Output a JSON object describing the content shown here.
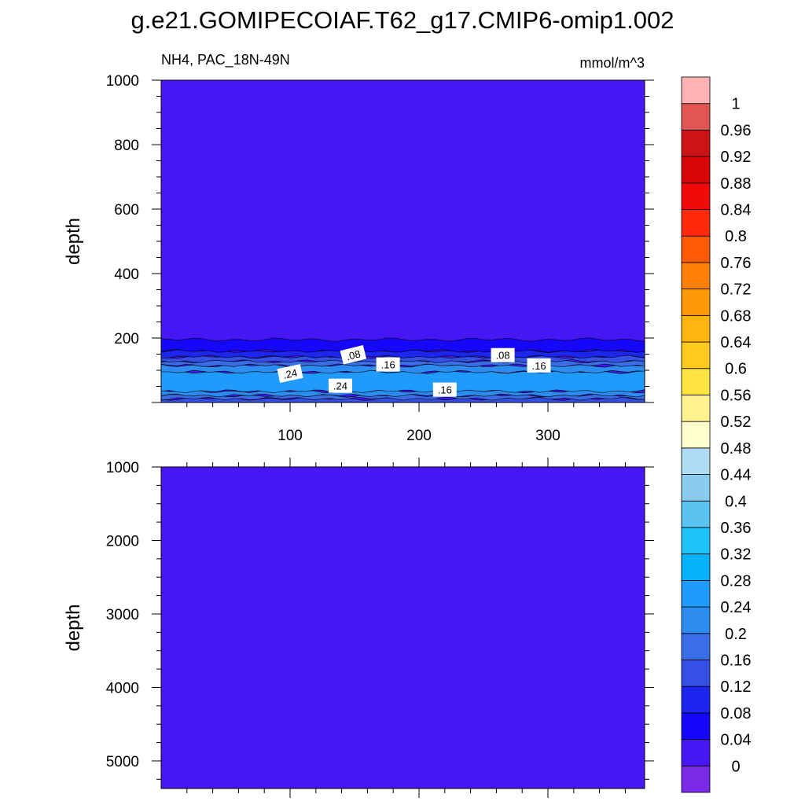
{
  "page": {
    "title": "g.e21.GOMIPECOIAF.T62_g17.CMIP6-omip1.002",
    "left_label": "NH4, PAC_18N-49N",
    "units": "mmol/m^3"
  },
  "chart_data": [
    {
      "type": "heatmap",
      "panel": "upper",
      "xlim": [
        0,
        375
      ],
      "ylim": [
        1000,
        0
      ],
      "ylabel": "depth",
      "xticks": [
        100,
        200,
        300
      ],
      "yticks": [
        200,
        400,
        600,
        800,
        1000
      ],
      "background_value": 0.02,
      "layers": [
        {
          "from": 0,
          "to": 12,
          "value": 0.14
        },
        {
          "from": 12,
          "to": 22,
          "value": 0.18
        },
        {
          "from": 22,
          "to": 35,
          "value": 0.22
        },
        {
          "from": 35,
          "to": 95,
          "value": 0.26
        },
        {
          "from": 95,
          "to": 115,
          "value": 0.22
        },
        {
          "from": 115,
          "to": 128,
          "value": 0.18
        },
        {
          "from": 128,
          "to": 142,
          "value": 0.14
        },
        {
          "from": 142,
          "to": 160,
          "value": 0.1
        },
        {
          "from": 160,
          "to": 195,
          "value": 0.06
        }
      ],
      "contour_labels": [
        {
          "text": ".24",
          "x": 100,
          "y": 90,
          "angle": -12
        },
        {
          "text": ".24",
          "x": 139,
          "y": 52,
          "angle": 0
        },
        {
          "text": ".16",
          "x": 220,
          "y": 40,
          "angle": 0
        },
        {
          "text": ".08",
          "x": 149,
          "y": 148,
          "angle": -14
        },
        {
          "text": ".16",
          "x": 176,
          "y": 118,
          "angle": 0
        },
        {
          "text": ".08",
          "x": 265,
          "y": 147,
          "angle": 0
        },
        {
          "text": ".16",
          "x": 293,
          "y": 115,
          "angle": 0
        }
      ]
    },
    {
      "type": "heatmap",
      "panel": "lower",
      "xlim": [
        0,
        375
      ],
      "ylim": [
        1000,
        5375
      ],
      "ylabel": "depth",
      "yticks": [
        1000,
        2000,
        3000,
        4000,
        5000
      ],
      "background_value": 0.02,
      "layers": []
    }
  ],
  "colorbar": {
    "levels": [
      "0",
      "0.04",
      "0.08",
      "0.12",
      "0.16",
      "0.2",
      "0.24",
      "0.28",
      "0.32",
      "0.36",
      "0.4",
      "0.44",
      "0.48",
      "0.52",
      "0.56",
      "0.6",
      "0.64",
      "0.68",
      "0.72",
      "0.76",
      "0.8",
      "0.84",
      "0.88",
      "0.92",
      "0.96",
      "1"
    ],
    "colors": [
      "#7a2ae6",
      "#4716f5",
      "#1508fa",
      "#1c26ee",
      "#3450e6",
      "#3a6ee6",
      "#2c8cf0",
      "#1e9bfc",
      "#04b2fb",
      "#1cc3fb",
      "#5ac3f1",
      "#8bcbed",
      "#b0dcf3",
      "#ffffce",
      "#fff28f",
      "#ffe340",
      "#ffc91f",
      "#ffb50d",
      "#ff9905",
      "#ff7f05",
      "#ff5a05",
      "#ff2a0a",
      "#f20a0a",
      "#d90505",
      "#cc1414",
      "#e25555",
      "#ffb2b2"
    ]
  }
}
